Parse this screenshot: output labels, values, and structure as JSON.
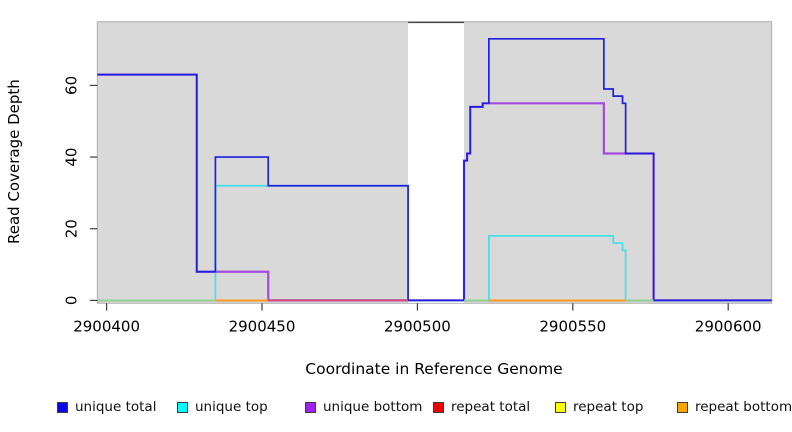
{
  "titles": {
    "y_axis": "Read Coverage Depth",
    "x_axis": "Coordinate in Reference Genome"
  },
  "axis": {
    "tick_color": "#3f3f3f",
    "label_color": "#000000",
    "x_tick_labels": [
      "2900400",
      "2900450",
      "2900500",
      "2900550",
      "2900600"
    ],
    "y_tick_labels": [
      "0",
      "20",
      "40",
      "60"
    ]
  },
  "plot": {
    "background": "#d9d9d9",
    "border": "#b0b0b0",
    "page_background": "#ffffff"
  },
  "chart_data": {
    "type": "line",
    "style": "step",
    "title": "",
    "xlabel": "Coordinate in Reference Genome",
    "ylabel": "Read Coverage Depth",
    "xlim": [
      2900397,
      2900614
    ],
    "ylim": [
      -0.81,
      77.78
    ],
    "x_ticks": [
      2900400,
      2900450,
      2900500,
      2900550,
      2900600
    ],
    "y_ticks": [
      0,
      20,
      40,
      60
    ],
    "grid": false,
    "legend_position": "bottom",
    "gap_region": {
      "from": 2900497,
      "to": 2900515,
      "fill": "#ffffff",
      "top_border": "#4a4a4a"
    },
    "series": [
      {
        "name": "repeat top",
        "color": "#ffff00",
        "width": 1.6,
        "points": [
          [
            2900397,
            0
          ],
          [
            2900614,
            0
          ]
        ]
      },
      {
        "name": "repeat bottom",
        "color": "#ffa500",
        "width": 1.6,
        "points": [
          [
            2900397,
            0
          ],
          [
            2900614,
            0
          ]
        ]
      },
      {
        "name": "repeat total",
        "color": "#ee2222",
        "width": 1.6,
        "points": [
          [
            2900397,
            0
          ],
          [
            2900614,
            0
          ]
        ]
      },
      {
        "name": "unique bottom",
        "color": "#a44ae0",
        "width": 2.2,
        "points": [
          [
            2900397,
            63
          ],
          [
            2900429,
            63
          ],
          [
            2900429,
            8
          ],
          [
            2900452,
            8
          ],
          [
            2900452,
            0
          ],
          [
            2900515,
            0
          ],
          [
            2900515,
            39
          ],
          [
            2900516,
            39
          ],
          [
            2900516,
            41
          ],
          [
            2900517,
            41
          ],
          [
            2900517,
            54
          ],
          [
            2900521,
            54
          ],
          [
            2900521,
            55
          ],
          [
            2900560,
            55
          ],
          [
            2900560,
            41
          ],
          [
            2900576,
            41
          ],
          [
            2900576,
            0
          ],
          [
            2900614,
            0
          ]
        ]
      },
      {
        "name": "unique top",
        "color": "#45dfe8",
        "width": 1.7,
        "points": [
          [
            2900397,
            0
          ],
          [
            2900435,
            0
          ],
          [
            2900435,
            32
          ],
          [
            2900497,
            32
          ],
          [
            2900497,
            0
          ],
          [
            2900523,
            0
          ],
          [
            2900523,
            18
          ],
          [
            2900563,
            18
          ],
          [
            2900563,
            16
          ],
          [
            2900566,
            16
          ],
          [
            2900566,
            14
          ],
          [
            2900567,
            14
          ],
          [
            2900567,
            0
          ],
          [
            2900614,
            0
          ]
        ]
      },
      {
        "name": "unique total",
        "color": "#2121dd",
        "width": 1.7,
        "points": [
          [
            2900397,
            63
          ],
          [
            2900429,
            63
          ],
          [
            2900429,
            8
          ],
          [
            2900435,
            8
          ],
          [
            2900435,
            40
          ],
          [
            2900452,
            40
          ],
          [
            2900452,
            32
          ],
          [
            2900497,
            32
          ],
          [
            2900497,
            0
          ],
          [
            2900515,
            0
          ],
          [
            2900515,
            39
          ],
          [
            2900516,
            39
          ],
          [
            2900516,
            41
          ],
          [
            2900517,
            41
          ],
          [
            2900517,
            54
          ],
          [
            2900521,
            54
          ],
          [
            2900521,
            55
          ],
          [
            2900523,
            55
          ],
          [
            2900523,
            73
          ],
          [
            2900560,
            73
          ],
          [
            2900560,
            59
          ],
          [
            2900563,
            59
          ],
          [
            2900563,
            57
          ],
          [
            2900566,
            57
          ],
          [
            2900566,
            55
          ],
          [
            2900567,
            55
          ],
          [
            2900567,
            41
          ],
          [
            2900576,
            41
          ],
          [
            2900576,
            0
          ],
          [
            2900614,
            0
          ]
        ]
      }
    ],
    "baseline_overlap_segments": [
      {
        "from": 2900397,
        "to": 2900435,
        "color": "#8fd48f"
      },
      {
        "from": 2900435,
        "to": 2900452,
        "color": "#ff9d1e"
      },
      {
        "from": 2900452,
        "to": 2900497,
        "color": "#d4476e"
      },
      {
        "from": 2900515,
        "to": 2900523,
        "color": "#8fd48f"
      },
      {
        "from": 2900523,
        "to": 2900567,
        "color": "#ff9d1e"
      },
      {
        "from": 2900567,
        "to": 2900576,
        "color": "#8fd48f"
      }
    ]
  },
  "legend": {
    "items": [
      {
        "label": "unique total",
        "color": "#0a00f0"
      },
      {
        "label": "unique top",
        "color": "#00ffff"
      },
      {
        "label": "unique bottom",
        "color": "#a020f0"
      },
      {
        "label": "repeat total",
        "color": "#ee0000"
      },
      {
        "label": "repeat top",
        "color": "#ffff00"
      },
      {
        "label": "repeat bottom",
        "color": "#ffa500"
      }
    ]
  }
}
